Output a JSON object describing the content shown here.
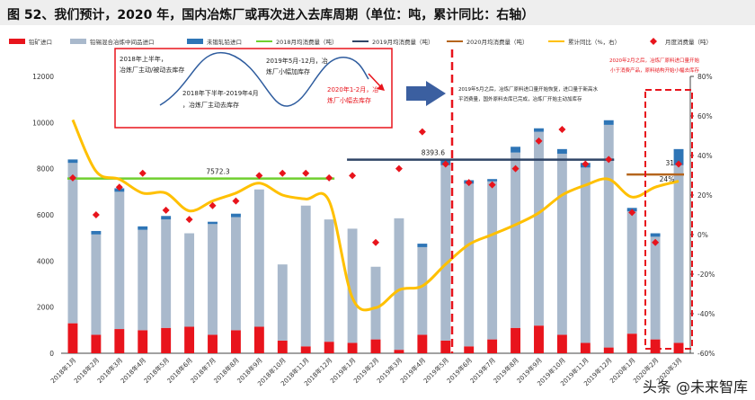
{
  "figure_title": "图 52、我们预计，2020 年，国内冶炼厂或再次进入去库周期（单位：吨，累计同比：右轴）",
  "watermark": "头条 @未来智库",
  "chart_data": {
    "type": "bar",
    "title": "图 52、我们预计，2020 年，国内冶炼厂或再次进入去库周期（单位：吨，累计同比：右轴）",
    "categories": [
      "2018年1月",
      "2018年2月",
      "2018年3月",
      "2018年4月",
      "2018年5月",
      "2018年6月",
      "2018年7月",
      "2018年8月",
      "2018年9月",
      "2018年10月",
      "2018年11月",
      "2018年12月",
      "2019年1月",
      "2019年2月",
      "2019年3月",
      "2019年4月",
      "2019年5月",
      "2019年6月",
      "2019年7月",
      "2019年8月",
      "2019年9月",
      "2019年10月",
      "2019年11月",
      "2019年12月",
      "2020年1月",
      "2020年2月",
      "2020年3月"
    ],
    "series": [
      {
        "name": "铅矿进口",
        "kind": "stacked-bar",
        "color": "#e8141c",
        "values": [
          1300,
          800,
          1050,
          1000,
          1100,
          1150,
          800,
          1000,
          1150,
          550,
          300,
          500,
          450,
          600,
          150,
          800,
          550,
          300,
          600,
          1100,
          1200,
          800,
          450,
          250,
          850,
          600,
          450
        ]
      },
      {
        "name": "铅锡混合冶炼中间品进口",
        "kind": "stacked-bar",
        "color": "#a9b9cc",
        "values": [
          6950,
          4350,
          5950,
          4350,
          4700,
          4050,
          4800,
          4900,
          5950,
          3300,
          6100,
          5300,
          4950,
          3150,
          5700,
          3800,
          7600,
          7050,
          6850,
          7600,
          8400,
          7850,
          7600,
          9650,
          5300,
          4450,
          7700
        ]
      },
      {
        "name": "未锻轧铅进口",
        "kind": "stacked-bar",
        "color": "#2e75b6",
        "values": [
          150,
          150,
          150,
          150,
          150,
          0,
          100,
          150,
          0,
          0,
          0,
          0,
          0,
          0,
          0,
          150,
          250,
          150,
          100,
          250,
          150,
          200,
          200,
          200,
          150,
          150,
          700
        ]
      },
      {
        "name": "2018月均消费量（吨）",
        "kind": "hline",
        "color": "#6fcf2f",
        "value": 7572.3,
        "label": "7572.3",
        "from": 0,
        "to": 11
      },
      {
        "name": "2019月均消费量（吨）",
        "kind": "hline",
        "color": "#2f4466",
        "value": 8393.6,
        "label": "8393.6",
        "from": 12,
        "to": 23
      },
      {
        "name": "2020月均消费量（吨）",
        "kind": "hline",
        "color": "#b5651d",
        "value": 7750,
        "label": "",
        "from": 24,
        "to": 26
      },
      {
        "name": "累计同比（%，右）",
        "kind": "line-right",
        "color": "#ffc000",
        "values": [
          58,
          32,
          28,
          21,
          21,
          12,
          17,
          21,
          26,
          20,
          18,
          17,
          -32,
          -37,
          -28,
          -26,
          -15,
          -5,
          0,
          5,
          11,
          20,
          25,
          28,
          19,
          24,
          27
        ]
      },
      {
        "name": "月度消费量（吨）",
        "kind": "scatter",
        "color": "#e8141c",
        "values": [
          7600,
          6000,
          7200,
          7800,
          6200,
          5800,
          6400,
          6600,
          7700,
          7800,
          7800,
          7600,
          7700,
          4800,
          8000,
          9600,
          8200,
          7400,
          7300,
          8000,
          9200,
          9700,
          8200,
          8400,
          6100,
          4800,
          8200
        ]
      }
    ],
    "ylim": [
      0,
      12000
    ],
    "y_ticks": [
      "0",
      "2000",
      "4000",
      "6000",
      "8000",
      "10000",
      "12000"
    ],
    "y2lim": [
      -60,
      80
    ],
    "y2_ticks": [
      "-60%",
      "-40%",
      "-20%",
      "0%",
      "20%",
      "40%",
      "60%",
      "80%"
    ],
    "xlabel": "",
    "ylabel": "",
    "grid": false,
    "legend_position": "top",
    "annotations": [
      {
        "id": "a1",
        "text": "2018年上半年，"
      },
      {
        "id": "a2",
        "text": "冶炼厂主动/被动去库存"
      },
      {
        "id": "a3",
        "text": "2018年下半年-2019年4月"
      },
      {
        "id": "a4",
        "text": "，冶炼厂主动去库存"
      },
      {
        "id": "a5",
        "text": "2019年5月-12月，冶"
      },
      {
        "id": "a6",
        "text": "炼厂小幅加库存"
      },
      {
        "id": "a7",
        "text": "2020年1-2月，冶"
      },
      {
        "id": "a8",
        "text": "炼厂小幅去库存"
      },
      {
        "id": "a9",
        "text": "2019年5月之后，冶炼厂原料进口量开始恢复，进口量于新高水"
      },
      {
        "id": "a10",
        "text": "平消费量，国外原料去库已完成，冶炼厂开始主动加库存"
      },
      {
        "id": "a11",
        "text": "2020年2月之后，冶炼厂原料进口量开始"
      },
      {
        "id": "a12",
        "text": "小于消费产品，原料结构开始小幅去库存"
      },
      {
        "id": "a13",
        "text": "24%"
      },
      {
        "id": "a14",
        "text": "31"
      }
    ]
  }
}
